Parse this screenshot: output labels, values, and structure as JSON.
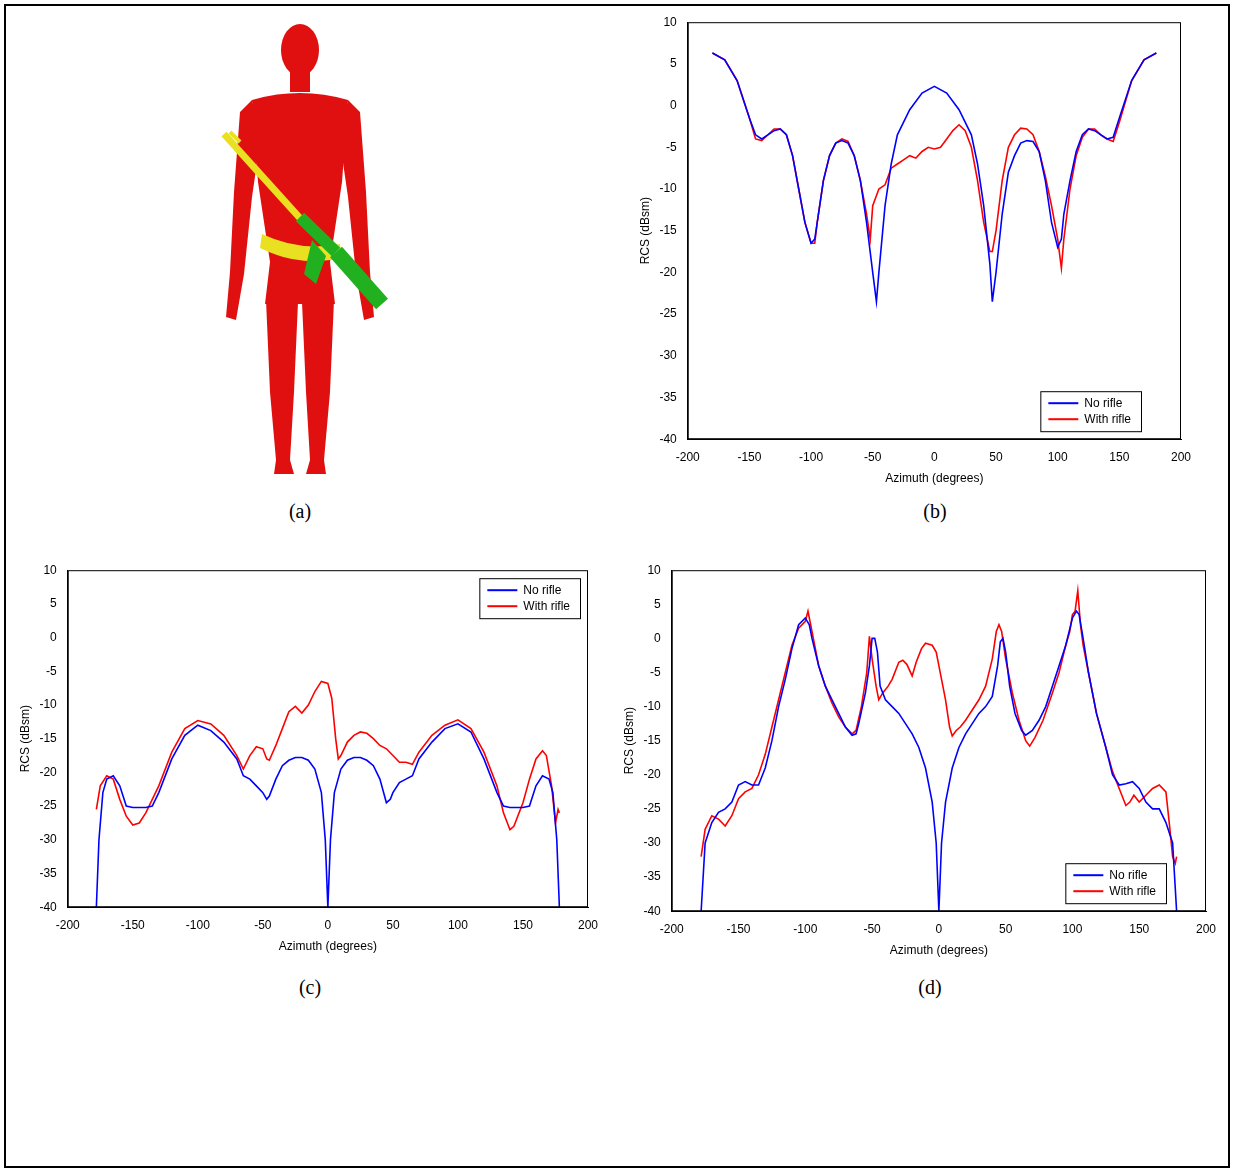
{
  "figure_a": {
    "panel": "(a)"
  },
  "chart_data": [
    {
      "panel": "(b)",
      "type": "line",
      "x_label": "Azimuth (degrees)",
      "y_label": "RCS (dBsm)",
      "xlim": [
        -200,
        200
      ],
      "xticks": [
        -200,
        -150,
        -100,
        -50,
        0,
        50,
        100,
        150,
        200
      ],
      "ylim": [
        -40,
        10
      ],
      "yticks": [
        -40,
        -35,
        -30,
        -25,
        -20,
        -15,
        -10,
        -5,
        0,
        5,
        10
      ],
      "grid": false,
      "legend": "lower right",
      "series": [
        {
          "name": "No rifle",
          "color": "#0000ff",
          "x": [
            -180,
            -170,
            -160,
            -150,
            -145,
            -140,
            -135,
            -130,
            -125,
            -120,
            -115,
            -110,
            -105,
            -100,
            -97,
            -95,
            -90,
            -85,
            -80,
            -75,
            -70,
            -65,
            -60,
            -55,
            -50,
            -47,
            -45,
            -40,
            -35,
            -30,
            -20,
            -10,
            0,
            10,
            20,
            30,
            35,
            40,
            45,
            47,
            50,
            55,
            60,
            65,
            70,
            75,
            80,
            85,
            90,
            95,
            100,
            103,
            105,
            110,
            115,
            120,
            125,
            130,
            135,
            140,
            145,
            150,
            160,
            170,
            180
          ],
          "values": [
            6.3,
            5.5,
            3,
            -1.5,
            -3.5,
            -4,
            -3.5,
            -3,
            -2.8,
            -3.5,
            -6,
            -10,
            -14,
            -16.5,
            -16,
            -14,
            -9,
            -6,
            -4.5,
            -4.2,
            -4.5,
            -6,
            -9,
            -14,
            -20,
            -23.5,
            -20,
            -12,
            -7,
            -3.5,
            -0.5,
            1.5,
            2.3,
            1.5,
            -0.5,
            -3.5,
            -7,
            -12,
            -19,
            -23.5,
            -20,
            -13,
            -8,
            -6,
            -4.5,
            -4.2,
            -4.3,
            -5.5,
            -9,
            -14,
            -17,
            -16,
            -13,
            -9,
            -5.5,
            -3.5,
            -2.8,
            -3,
            -3.5,
            -4,
            -3.8,
            -1.5,
            3,
            5.5,
            6.3
          ]
        },
        {
          "name": "With rifle",
          "color": "#ff0000",
          "x": [
            -180,
            -170,
            -160,
            -150,
            -145,
            -140,
            -135,
            -130,
            -125,
            -120,
            -115,
            -110,
            -105,
            -100,
            -97,
            -95,
            -90,
            -85,
            -80,
            -75,
            -70,
            -65,
            -60,
            -55,
            -52,
            -50,
            -45,
            -40,
            -35,
            -30,
            -25,
            -20,
            -15,
            -10,
            -5,
            0,
            5,
            10,
            15,
            20,
            25,
            30,
            35,
            40,
            45,
            47,
            50,
            55,
            60,
            65,
            70,
            75,
            80,
            85,
            90,
            95,
            100,
            103,
            105,
            110,
            115,
            120,
            125,
            130,
            135,
            140,
            145,
            150,
            160,
            170,
            180
          ],
          "values": [
            6.3,
            5.5,
            3,
            -1.5,
            -4,
            -4.2,
            -3.5,
            -2.8,
            -2.8,
            -3.5,
            -6,
            -10,
            -14,
            -16.5,
            -16.5,
            -14,
            -9,
            -6,
            -4.5,
            -4,
            -4.3,
            -6,
            -9,
            -13,
            -16,
            -12,
            -10,
            -9.5,
            -7.5,
            -7,
            -6.5,
            -6,
            -6.3,
            -5.5,
            -5,
            -5.2,
            -5,
            -4,
            -3,
            -2.3,
            -3,
            -5,
            -9,
            -14,
            -17.5,
            -17.5,
            -15,
            -9,
            -5,
            -3.5,
            -2.7,
            -2.8,
            -3.5,
            -5.5,
            -8.5,
            -12,
            -16,
            -19.5,
            -16,
            -10,
            -6,
            -3.8,
            -2.8,
            -2.8,
            -3.5,
            -4,
            -4.3,
            -2,
            3,
            5.5,
            6.3
          ]
        }
      ]
    },
    {
      "panel": "(c)",
      "type": "line",
      "x_label": "Azimuth (degrees)",
      "y_label": "RCS (dBsm)",
      "xlim": [
        -200,
        200
      ],
      "xticks": [
        -200,
        -150,
        -100,
        -50,
        0,
        50,
        100,
        150,
        200
      ],
      "ylim": [
        -40,
        10
      ],
      "yticks": [
        -40,
        -35,
        -30,
        -25,
        -20,
        -15,
        -10,
        -5,
        0,
        5,
        10
      ],
      "grid": false,
      "legend": "upper right",
      "series": [
        {
          "name": "No rifle",
          "color": "#0000ff",
          "x": [
            -178,
            -176,
            -173,
            -170,
            -165,
            -160,
            -155,
            -150,
            -140,
            -135,
            -130,
            -120,
            -110,
            -100,
            -90,
            -80,
            -70,
            -65,
            -60,
            -55,
            -50,
            -47,
            -45,
            -40,
            -35,
            -30,
            -25,
            -20,
            -15,
            -10,
            -5,
            -2,
            0,
            2,
            5,
            10,
            15,
            20,
            25,
            30,
            35,
            40,
            45,
            48,
            50,
            55,
            60,
            65,
            70,
            80,
            90,
            100,
            110,
            120,
            130,
            135,
            140,
            150,
            155,
            160,
            165,
            170,
            173,
            176,
            178
          ],
          "values": [
            -40,
            -30,
            -23,
            -21,
            -20.5,
            -22,
            -25,
            -25.2,
            -25.2,
            -25,
            -23,
            -18,
            -14.5,
            -13,
            -13.8,
            -15.5,
            -18,
            -20.5,
            -21,
            -22,
            -23,
            -24,
            -23.5,
            -21,
            -19,
            -18.2,
            -17.8,
            -17.8,
            -18.2,
            -19.5,
            -23,
            -30,
            -40,
            -30,
            -23,
            -19.5,
            -18.2,
            -17.8,
            -17.8,
            -18.2,
            -19,
            -21,
            -24.5,
            -24,
            -23,
            -21.5,
            -21,
            -20.5,
            -18,
            -15.5,
            -13.5,
            -12.8,
            -14,
            -18,
            -23,
            -25,
            -25.2,
            -25.2,
            -25,
            -22,
            -20.5,
            -21,
            -23,
            -30,
            -40
          ]
        },
        {
          "name": "With rifle",
          "color": "#ff0000",
          "x": [
            -178,
            -175,
            -170,
            -165,
            -160,
            -155,
            -150,
            -145,
            -140,
            -130,
            -120,
            -110,
            -100,
            -90,
            -80,
            -70,
            -65,
            -60,
            -55,
            -50,
            -47,
            -45,
            -40,
            -35,
            -30,
            -25,
            -20,
            -15,
            -10,
            -5,
            0,
            3,
            6,
            8,
            10,
            15,
            20,
            25,
            30,
            35,
            40,
            45,
            50,
            55,
            60,
            65,
            70,
            80,
            90,
            100,
            110,
            120,
            130,
            135,
            140,
            143,
            150,
            155,
            160,
            165,
            168,
            172,
            175,
            177,
            178
          ],
          "values": [
            -25.5,
            -22,
            -20.5,
            -21,
            -24,
            -26.5,
            -27.8,
            -27.5,
            -26,
            -22,
            -17,
            -13.5,
            -12.3,
            -12.8,
            -14.5,
            -17.5,
            -19.5,
            -17.5,
            -16.2,
            -16.5,
            -18,
            -18.2,
            -16,
            -13.5,
            -11,
            -10.2,
            -11.2,
            -10,
            -8,
            -6.5,
            -6.8,
            -9,
            -15,
            -18,
            -17.5,
            -15.5,
            -14.5,
            -14,
            -14.2,
            -15,
            -16,
            -16.5,
            -17.5,
            -18.5,
            -18.5,
            -18.8,
            -17,
            -14.5,
            -13,
            -12.2,
            -13.5,
            -17,
            -22,
            -26,
            -28.5,
            -28,
            -24.5,
            -21,
            -18,
            -16.8,
            -17.5,
            -22,
            -27.5,
            -25.5,
            -26
          ]
        }
      ]
    },
    {
      "panel": "(d)",
      "type": "line",
      "x_label": "Azimuth (degrees)",
      "y_label": "RCS (dBsm)",
      "xlim": [
        -200,
        200
      ],
      "xticks": [
        -200,
        -150,
        -100,
        -50,
        0,
        50,
        100,
        150,
        200
      ],
      "ylim": [
        -40,
        10
      ],
      "yticks": [
        -40,
        -35,
        -30,
        -25,
        -20,
        -15,
        -10,
        -5,
        0,
        5,
        10
      ],
      "grid": false,
      "legend": "lower right",
      "series": [
        {
          "name": "No rifle",
          "color": "#0000ff",
          "x": [
            -178,
            -175,
            -170,
            -165,
            -160,
            -155,
            -150,
            -145,
            -140,
            -135,
            -130,
            -125,
            -120,
            -115,
            -110,
            -105,
            -100,
            -97,
            -95,
            -90,
            -85,
            -80,
            -75,
            -70,
            -65,
            -62,
            -60,
            -55,
            -52,
            -50,
            -48,
            -46,
            -44,
            -40,
            -35,
            -30,
            -25,
            -20,
            -15,
            -10,
            -5,
            -2,
            0,
            2,
            5,
            10,
            15,
            20,
            25,
            30,
            35,
            40,
            44,
            46,
            48,
            50,
            53,
            57,
            62,
            65,
            70,
            75,
            80,
            85,
            90,
            95,
            100,
            103,
            105,
            108,
            112,
            118,
            125,
            130,
            135,
            140,
            145,
            150,
            155,
            160,
            165,
            170,
            175,
            178
          ],
          "values": [
            -40,
            -30,
            -27,
            -25.5,
            -25,
            -24,
            -21.5,
            -21,
            -21.5,
            -21.5,
            -19,
            -15,
            -10,
            -6,
            -1.5,
            2,
            3,
            2,
            0,
            -4,
            -7,
            -9,
            -11,
            -13,
            -14.2,
            -14,
            -12.5,
            -8,
            -4,
            0,
            0,
            -2,
            -7,
            -9,
            -10,
            -11,
            -12.5,
            -14,
            -16,
            -19,
            -24,
            -30,
            -40,
            -30,
            -24,
            -19,
            -16,
            -14,
            -12.5,
            -11,
            -10,
            -8.5,
            -4,
            -0.5,
            0,
            -2,
            -7,
            -11,
            -13.5,
            -14.2,
            -13.5,
            -12,
            -10,
            -7,
            -4,
            -1,
            3,
            4,
            3.5,
            0,
            -5,
            -11,
            -16,
            -20,
            -21.5,
            -21.3,
            -21,
            -22,
            -24,
            -25,
            -25,
            -27,
            -30,
            -40
          ]
        },
        {
          "name": "With rifle",
          "color": "#ff0000",
          "x": [
            -178,
            -175,
            -170,
            -165,
            -160,
            -155,
            -150,
            -145,
            -140,
            -135,
            -130,
            -125,
            -120,
            -115,
            -110,
            -105,
            -100,
            -98,
            -96,
            -93,
            -90,
            -85,
            -80,
            -75,
            -70,
            -65,
            -62,
            -58,
            -54,
            -52,
            -50,
            -47,
            -45,
            -42,
            -38,
            -35,
            -30,
            -27,
            -24,
            -20,
            -17,
            -13,
            -10,
            -5,
            -2,
            2,
            5,
            8,
            10,
            13,
            16,
            20,
            25,
            30,
            35,
            40,
            43,
            45,
            47,
            50,
            55,
            60,
            65,
            68,
            72,
            78,
            85,
            90,
            95,
            98,
            100,
            102,
            104,
            106,
            108,
            112,
            118,
            125,
            130,
            135,
            140,
            143,
            146,
            150,
            155,
            160,
            165,
            170,
            173,
            175,
            177,
            178
          ],
          "values": [
            -32,
            -28,
            -26,
            -26.5,
            -27.5,
            -26,
            -23.5,
            -22.5,
            -22,
            -20,
            -17,
            -13,
            -9,
            -5,
            -1,
            1.5,
            2.5,
            4,
            2,
            -1,
            -4,
            -7,
            -9.5,
            -11.5,
            -13,
            -14,
            -13.5,
            -10,
            -5,
            0.3,
            -3,
            -7,
            -9,
            -8,
            -7,
            -6,
            -3.5,
            -3.2,
            -3.8,
            -5.5,
            -3.5,
            -1.5,
            -0.7,
            -1,
            -2,
            -6,
            -9,
            -13,
            -14.3,
            -13.5,
            -13,
            -12,
            -10.5,
            -9,
            -7,
            -3,
            1,
            2,
            1,
            -3,
            -8,
            -12,
            -15,
            -15.8,
            -14.5,
            -12,
            -8,
            -5,
            -1,
            1,
            3.5,
            4,
            7,
            2,
            -1,
            -5,
            -11,
            -16,
            -19.5,
            -22,
            -24.5,
            -24,
            -23,
            -24,
            -23,
            -22,
            -21.5,
            -22.5,
            -28,
            -32,
            -33,
            -32
          ]
        }
      ]
    }
  ]
}
